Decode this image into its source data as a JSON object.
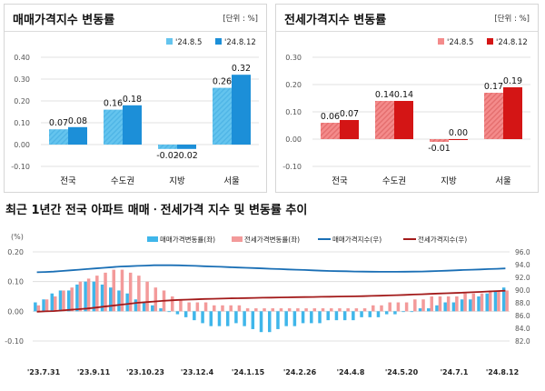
{
  "colors": {
    "sale_prev": "#64c4ee",
    "sale_curr": "#1c8fd8",
    "rent_prev": "#f48b8b",
    "rent_curr": "#d41515",
    "sale_bar": "#3fb6ea",
    "rent_bar": "#f39a9a",
    "sale_line": "#1a6fb5",
    "rent_line": "#a31b1b",
    "grid": "#d9d9d9",
    "axis_text": "#555555"
  },
  "chart_data": [
    {
      "id": "sale",
      "type": "bar",
      "title": "매매가격지수 변동률",
      "unit_label": "[단위 : %]",
      "categories": [
        "전국",
        "수도권",
        "지방",
        "서울"
      ],
      "series": [
        {
          "name": "'24.8.5",
          "values": [
            0.07,
            0.16,
            -0.02,
            0.26
          ]
        },
        {
          "name": "'24.8.12",
          "values": [
            0.08,
            0.18,
            -0.02,
            0.32
          ]
        }
      ],
      "ylim": [
        -0.1,
        0.4
      ],
      "yticks": [
        "0.40",
        "0.30",
        "0.20",
        "0.10",
        "0.00",
        "-0.10"
      ],
      "data_labels": [
        [
          "0.07",
          "0.16",
          "-0.02",
          "0.26"
        ],
        [
          "0.08",
          "0.18",
          "-0.02",
          "0.32"
        ]
      ],
      "grid": true,
      "legend": "top-right"
    },
    {
      "id": "rent",
      "type": "bar",
      "title": "전세가격지수 변동률",
      "unit_label": "[단위 : %]",
      "categories": [
        "전국",
        "수도권",
        "지방",
        "서울"
      ],
      "series": [
        {
          "name": "'24.8.5",
          "values": [
            0.06,
            0.14,
            -0.01,
            0.17
          ]
        },
        {
          "name": "'24.8.12",
          "values": [
            0.07,
            0.14,
            0.0,
            0.19
          ]
        }
      ],
      "ylim": [
        -0.1,
        0.3
      ],
      "yticks": [
        "0.30",
        "0.20",
        "0.10",
        "0.00",
        "-0.10"
      ],
      "data_labels": [
        [
          "0.06",
          "0.14",
          "-0.01",
          "0.17"
        ],
        [
          "0.07",
          "0.14",
          "0.00",
          "0.19"
        ]
      ],
      "grid": true,
      "legend": "top-right"
    },
    {
      "id": "trend",
      "type": "bar",
      "title": "최근 1년간 전국 아파트 매매ㆍ전세가격 지수 및 변동률 추이",
      "left_unit": "(%)",
      "yticks_left": [
        "0.20",
        "0.10",
        "0.00",
        "-0.10"
      ],
      "yticks_right": [
        "96.0",
        "94.0",
        "92.0",
        "90.0",
        "88.0",
        "86.0",
        "84.0",
        "82.0"
      ],
      "ylim_left": [
        -0.1,
        0.2
      ],
      "ylim_right": [
        82,
        96
      ],
      "x_labels": [
        "'23.7.31",
        "'23.9.11",
        "'23.10.23",
        "'23.12.4",
        "'24.1.15",
        "'24.2.26",
        "'24.4.8",
        "'24.5.20",
        "'24.7.1",
        "'24.8.12"
      ],
      "series": [
        {
          "name": "매매가격변동률(좌)",
          "kind": "bar",
          "values": [
            0.03,
            0.04,
            0.06,
            0.07,
            0.07,
            0.09,
            0.1,
            0.1,
            0.09,
            0.08,
            0.07,
            0.06,
            0.04,
            0.03,
            0.02,
            0.01,
            0.0,
            -0.01,
            -0.02,
            -0.03,
            -0.04,
            -0.05,
            -0.05,
            -0.05,
            -0.04,
            -0.05,
            -0.06,
            -0.07,
            -0.07,
            -0.06,
            -0.05,
            -0.05,
            -0.04,
            -0.04,
            -0.04,
            -0.03,
            -0.03,
            -0.03,
            -0.03,
            -0.02,
            -0.02,
            -0.02,
            -0.01,
            -0.01,
            0.0,
            0.0,
            0.01,
            0.01,
            0.02,
            0.03,
            0.03,
            0.04,
            0.04,
            0.05,
            0.06,
            0.07,
            0.08
          ]
        },
        {
          "name": "전세가격변동률(좌)",
          "kind": "bar",
          "values": [
            0.02,
            0.04,
            0.05,
            0.07,
            0.08,
            0.1,
            0.11,
            0.12,
            0.13,
            0.14,
            0.14,
            0.13,
            0.12,
            0.1,
            0.08,
            0.07,
            0.05,
            0.04,
            0.03,
            0.03,
            0.03,
            0.02,
            0.02,
            0.02,
            0.02,
            0.01,
            0.01,
            0.01,
            0.01,
            0.01,
            0.01,
            0.01,
            0.01,
            0.01,
            0.01,
            0.01,
            0.01,
            0.01,
            0.01,
            0.01,
            0.02,
            0.02,
            0.03,
            0.03,
            0.03,
            0.04,
            0.04,
            0.05,
            0.05,
            0.05,
            0.05,
            0.06,
            0.06,
            0.06,
            0.07,
            0.07,
            0.07
          ]
        },
        {
          "name": "매매가격지수(우)",
          "kind": "line",
          "values": [
            92.8,
            92.85,
            92.9,
            93.0,
            93.1,
            93.2,
            93.3,
            93.4,
            93.5,
            93.6,
            93.7,
            93.75,
            93.8,
            93.85,
            93.9,
            93.9,
            93.9,
            93.88,
            93.85,
            93.8,
            93.75,
            93.7,
            93.65,
            93.6,
            93.55,
            93.5,
            93.45,
            93.4,
            93.35,
            93.3,
            93.25,
            93.2,
            93.15,
            93.1,
            93.05,
            93.0,
            92.97,
            92.95,
            92.92,
            92.9,
            92.88,
            92.87,
            92.87,
            92.87,
            92.88,
            92.9,
            92.92,
            92.95,
            93.0,
            93.05,
            93.1,
            93.15,
            93.2,
            93.25,
            93.3,
            93.35,
            93.4
          ]
        },
        {
          "name": "전세가격지수(우)",
          "kind": "line",
          "values": [
            86.6,
            86.65,
            86.7,
            86.8,
            86.9,
            87.0,
            87.1,
            87.25,
            87.4,
            87.55,
            87.7,
            87.85,
            88.0,
            88.1,
            88.2,
            88.3,
            88.38,
            88.45,
            88.5,
            88.55,
            88.6,
            88.63,
            88.66,
            88.7,
            88.72,
            88.75,
            88.77,
            88.8,
            88.82,
            88.84,
            88.86,
            88.88,
            88.9,
            88.92,
            88.94,
            88.96,
            88.98,
            89.0,
            89.02,
            89.05,
            89.08,
            89.12,
            89.16,
            89.2,
            89.25,
            89.3,
            89.35,
            89.4,
            89.45,
            89.5,
            89.55,
            89.6,
            89.66,
            89.72,
            89.78,
            89.84,
            89.9
          ]
        }
      ],
      "legend": "top"
    }
  ]
}
